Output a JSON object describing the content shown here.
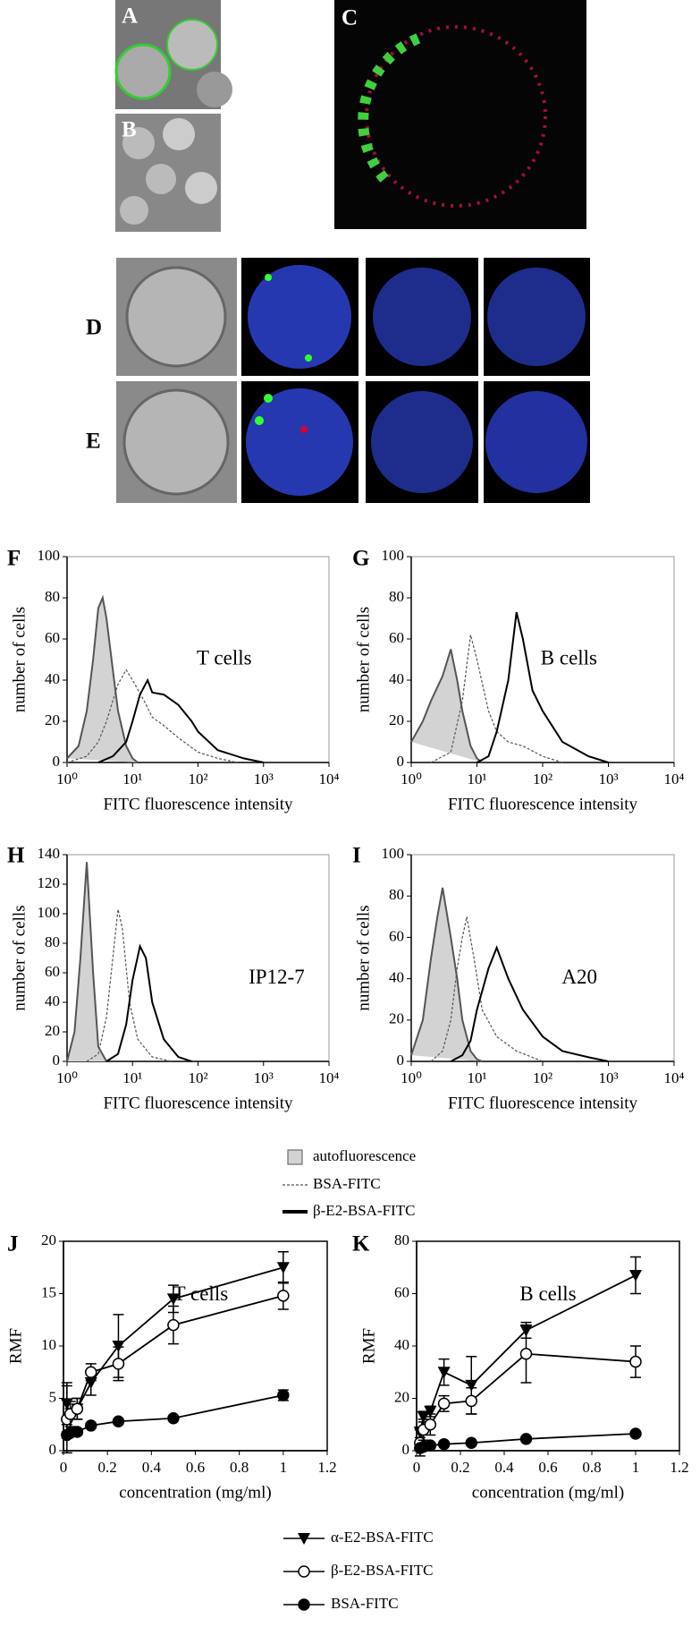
{
  "micrograph_labels": [
    "A",
    "B",
    "C",
    "D",
    "E"
  ],
  "chart_data": [
    {
      "type": "line",
      "panel": "F",
      "annotation": "T cells",
      "xlabel": "FITC fluorescence intensity",
      "ylabel": "number of cells",
      "log_x": true,
      "xlim": [
        1,
        10000
      ],
      "xticks": [
        {
          "value": 1,
          "label": "10⁰"
        },
        {
          "value": 10,
          "label": "10¹"
        },
        {
          "value": 100,
          "label": "10²"
        },
        {
          "value": 1000,
          "label": "10³"
        },
        {
          "value": 10000,
          "label": "10⁴"
        }
      ],
      "ylim": [
        0,
        100
      ],
      "yticks": [
        0,
        20,
        40,
        60,
        80,
        100
      ],
      "series": [
        {
          "name": "autofluorescence",
          "color": "#555555",
          "fill": "#d3d3d3",
          "x": [
            1,
            1.5,
            2,
            2.5,
            3,
            3.5,
            4,
            5,
            6,
            8,
            10,
            12
          ],
          "values": [
            2,
            8,
            25,
            50,
            75,
            80,
            70,
            45,
            25,
            8,
            2,
            0
          ]
        },
        {
          "name": "BSA-FITC",
          "color": "#555555",
          "dash": true,
          "x": [
            1,
            2,
            3,
            4,
            5,
            6,
            8,
            10,
            15,
            20,
            30,
            50,
            100,
            200,
            400
          ],
          "values": [
            0,
            3,
            10,
            20,
            30,
            38,
            45,
            40,
            30,
            22,
            18,
            12,
            5,
            2,
            0
          ]
        },
        {
          "name": "β-E2-BSA-FITC",
          "color": "#000000",
          "x": [
            3,
            5,
            8,
            10,
            13,
            17,
            20,
            30,
            50,
            80,
            100,
            200,
            500,
            1000
          ],
          "values": [
            0,
            3,
            10,
            20,
            33,
            40,
            34,
            33,
            28,
            20,
            15,
            6,
            2,
            0
          ]
        }
      ]
    },
    {
      "type": "line",
      "panel": "G",
      "annotation": "B cells",
      "xlabel": "FITC fluorescence intensity",
      "ylabel": "number of cells",
      "log_x": true,
      "xlim": [
        1,
        10000
      ],
      "xticks": [
        {
          "value": 1,
          "label": "10⁰"
        },
        {
          "value": 10,
          "label": "10¹"
        },
        {
          "value": 100,
          "label": "10²"
        },
        {
          "value": 1000,
          "label": "10³"
        },
        {
          "value": 10000,
          "label": "10⁴"
        }
      ],
      "ylim": [
        0,
        100
      ],
      "yticks": [
        0,
        20,
        40,
        60,
        80,
        100
      ],
      "series": [
        {
          "color": "#555555",
          "fill": "#d3d3d3",
          "x": [
            1,
            1.5,
            2,
            3,
            4,
            5,
            6,
            8,
            10,
            12
          ],
          "values": [
            10,
            20,
            30,
            42,
            55,
            40,
            25,
            8,
            2,
            0
          ]
        },
        {
          "color": "#555555",
          "dash": true,
          "x": [
            2,
            4,
            6,
            8,
            10,
            15,
            20,
            30,
            50,
            100,
            200
          ],
          "values": [
            0,
            5,
            30,
            62,
            50,
            25,
            15,
            10,
            8,
            3,
            0
          ]
        },
        {
          "color": "#000000",
          "x": [
            10,
            15,
            20,
            30,
            40,
            50,
            70,
            100,
            200,
            500,
            1000
          ],
          "values": [
            0,
            3,
            15,
            40,
            73,
            60,
            35,
            25,
            10,
            3,
            0
          ]
        }
      ]
    },
    {
      "type": "line",
      "panel": "H",
      "annotation": "IP12-7",
      "xlabel": "FITC fluorescence intensity",
      "ylabel": "number of cells",
      "log_x": true,
      "xlim": [
        1,
        10000
      ],
      "xticks": [
        {
          "value": 1,
          "label": "10⁰"
        },
        {
          "value": 10,
          "label": "10¹"
        },
        {
          "value": 100,
          "label": "10²"
        },
        {
          "value": 1000,
          "label": "10³"
        },
        {
          "value": 10000,
          "label": "10⁴"
        }
      ],
      "ylim": [
        0,
        140
      ],
      "yticks": [
        0,
        20,
        40,
        60,
        80,
        100,
        120,
        140
      ],
      "series": [
        {
          "color": "#555555",
          "fill": "#d3d3d3",
          "x": [
            1,
            1.3,
            1.6,
            2,
            2.5,
            3,
            4
          ],
          "values": [
            0,
            20,
            70,
            135,
            60,
            10,
            0
          ]
        },
        {
          "color": "#555555",
          "dash": true,
          "x": [
            2,
            3,
            4,
            5,
            6,
            7,
            9,
            12,
            20,
            40
          ],
          "values": [
            0,
            5,
            30,
            70,
            103,
            90,
            40,
            15,
            3,
            0
          ]
        },
        {
          "color": "#000000",
          "x": [
            4,
            6,
            8,
            10,
            13,
            16,
            20,
            30,
            50,
            80
          ],
          "values": [
            0,
            5,
            25,
            55,
            78,
            70,
            40,
            15,
            3,
            0
          ]
        }
      ]
    },
    {
      "type": "line",
      "panel": "I",
      "annotation": "A20",
      "xlabel": "FITC fluorescence intensity",
      "ylabel": "number of cells",
      "log_x": true,
      "xlim": [
        1,
        10000
      ],
      "xticks": [
        {
          "value": 1,
          "label": "10⁰"
        },
        {
          "value": 10,
          "label": "10¹"
        },
        {
          "value": 100,
          "label": "10²"
        },
        {
          "value": 1000,
          "label": "10³"
        },
        {
          "value": 10000,
          "label": "10⁴"
        }
      ],
      "ylim": [
        0,
        100
      ],
      "yticks": [
        0,
        20,
        40,
        60,
        80,
        100
      ],
      "series": [
        {
          "color": "#555555",
          "fill": "#d3d3d3",
          "x": [
            1,
            1.5,
            2,
            2.5,
            3,
            4,
            5,
            6,
            8,
            10,
            12
          ],
          "values": [
            3,
            20,
            50,
            70,
            84,
            60,
            40,
            20,
            5,
            1,
            0
          ]
        },
        {
          "color": "#555555",
          "dash": true,
          "x": [
            2,
            3,
            4,
            5,
            6,
            7,
            9,
            12,
            20,
            40,
            100
          ],
          "values": [
            0,
            5,
            20,
            45,
            60,
            70,
            50,
            25,
            12,
            5,
            0
          ]
        },
        {
          "color": "#000000",
          "x": [
            4,
            6,
            8,
            10,
            15,
            20,
            30,
            50,
            100,
            200,
            500,
            1000
          ],
          "values": [
            0,
            3,
            10,
            25,
            45,
            55,
            40,
            25,
            12,
            5,
            2,
            0
          ]
        }
      ]
    },
    {
      "type": "errorline",
      "panel": "J",
      "annotation": "T cells",
      "xlabel": "concentration (mg/ml)",
      "ylabel": "RMF",
      "x": [
        0.0156,
        0.03125,
        0.0625,
        0.125,
        0.25,
        0.5,
        1
      ],
      "xlim": [
        0,
        1.2
      ],
      "xticks": [
        0,
        0.2,
        0.4,
        0.6,
        0.8,
        1,
        1.2
      ],
      "ylim": [
        0,
        20
      ],
      "yticks": [
        0,
        5,
        10,
        15,
        20
      ],
      "series": [
        {
          "name": "α-E2-BSA-FITC",
          "marker": "triangle-down",
          "color": "#000000",
          "values": [
            4.5,
            3,
            4,
            6.5,
            10,
            14.5,
            17.5
          ],
          "errors": [
            2,
            1,
            1,
            1.2,
            3,
            1.3,
            1.5
          ]
        },
        {
          "name": "β-E2-BSA-FITC",
          "marker": "circle-open",
          "color": "#000000",
          "values": [
            3,
            3.5,
            4,
            7.5,
            8.3,
            12,
            14.8
          ],
          "errors": [
            3.2,
            1.2,
            1,
            0.8,
            1.6,
            1.8,
            1.3
          ]
        },
        {
          "name": "BSA-FITC",
          "marker": "circle",
          "color": "#000000",
          "values": [
            1.5,
            1.7,
            1.8,
            2.4,
            2.8,
            3.1,
            5.3
          ],
          "errors": [
            0.3,
            0.3,
            0.3,
            0.2,
            0.2,
            0.2,
            0.5
          ]
        }
      ]
    },
    {
      "type": "errorline",
      "panel": "K",
      "annotation": "B cells",
      "xlabel": "concentration (mg/ml)",
      "ylabel": "RMF",
      "x": [
        0.0156,
        0.03125,
        0.0625,
        0.125,
        0.25,
        0.5,
        1
      ],
      "xlim": [
        0,
        1.2
      ],
      "xticks": [
        0,
        0.2,
        0.4,
        0.6,
        0.8,
        1,
        1.2
      ],
      "ylim": [
        0,
        80
      ],
      "yticks": [
        0,
        20,
        40,
        60,
        80
      ],
      "series": [
        {
          "marker": "triangle-down",
          "color": "#000000",
          "values": [
            7,
            13,
            15,
            30,
            25,
            46,
            67
          ],
          "errors": [
            2,
            2,
            2,
            5,
            11,
            3,
            7
          ]
        },
        {
          "marker": "circle-open",
          "color": "#000000",
          "values": [
            3,
            8,
            10,
            18,
            19,
            37,
            34
          ],
          "errors": [
            5,
            4,
            4,
            3,
            5,
            11,
            6
          ]
        },
        {
          "marker": "circle",
          "color": "#000000",
          "values": [
            1,
            1.5,
            2,
            2.5,
            3,
            4.5,
            6.5
          ],
          "errors": [
            1,
            1,
            1,
            0.5,
            0.5,
            0.5,
            0.5
          ]
        }
      ]
    }
  ]
}
